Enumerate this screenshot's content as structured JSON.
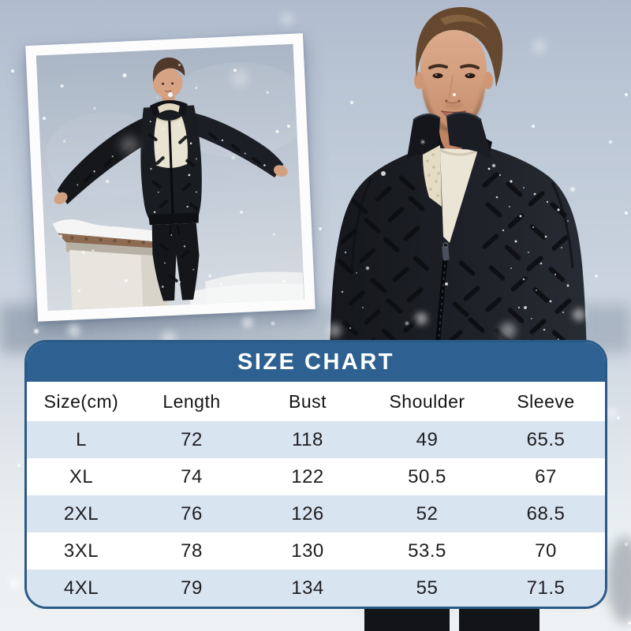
{
  "chart_data": {
    "type": "table",
    "title": "SIZE CHART",
    "columns": [
      "Size(cm)",
      "Length",
      "Bust",
      "Shoulder",
      "Sleeve"
    ],
    "rows": [
      [
        "L",
        "72",
        "118",
        "49",
        "65.5"
      ],
      [
        "XL",
        "74",
        "122",
        "50.5",
        "67"
      ],
      [
        "2XL",
        "76",
        "126",
        "52",
        "68.5"
      ],
      [
        "3XL",
        "78",
        "130",
        "53.5",
        "70"
      ],
      [
        "4XL",
        "79",
        "134",
        "55",
        "71.5"
      ]
    ]
  },
  "images": {
    "main_photo": "Man wearing black quilted stand-collar winter jacket with sherpa lining, standing in falling snow",
    "inset_photo": "Polaroid-style inset photo of the same man with arms outstretched in the snow"
  },
  "colors": {
    "header_bg": "#2e6191",
    "header_text": "#ffffff",
    "row_alt": "#d9e4f1",
    "row_white": "#ffffff",
    "table_border": "#295a86",
    "cell_text": "#1e1e20"
  }
}
